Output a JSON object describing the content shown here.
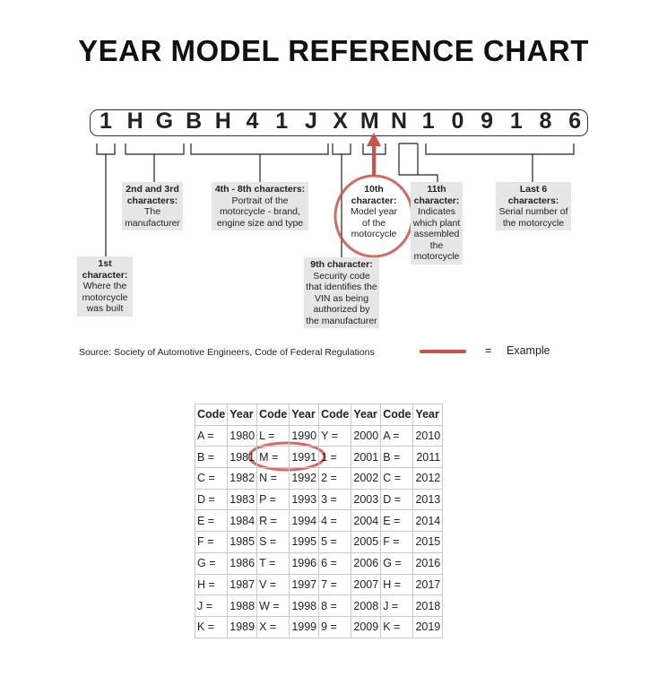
{
  "title": "YEAR MODEL REFERENCE CHART",
  "vin": [
    "1",
    "H",
    "G",
    "B",
    "H",
    "4",
    "1",
    "J",
    "X",
    "M",
    "N",
    "1",
    "0",
    "9",
    "1",
    "8",
    "6"
  ],
  "labels": {
    "first": {
      "head": "1st character:",
      "body": "Where the motorcycle was built"
    },
    "second_third": {
      "head": "2nd and 3rd characters:",
      "body": "The manufacturer"
    },
    "fourth_eighth": {
      "head": "4th - 8th characters:",
      "body": "Portrait of the motorcycle - brand, engine size and type"
    },
    "ninth": {
      "head": "9th character:",
      "body": "Security code that identifies the VIN as being authorized by the manufacturer"
    },
    "tenth": {
      "head": "10th character:",
      "body": "Model year of the motorcycle"
    },
    "eleventh": {
      "head": "11th character:",
      "body": "Indicates which plant assembled the motorcycle"
    },
    "last6": {
      "head": "Last 6 characters:",
      "body": "Serial number of the motorcycle"
    }
  },
  "source": "Source:  Society of Automotive Engineers, Code of Federal Regulations",
  "legend": {
    "equals": "=",
    "label": "Example",
    "color": "#c9524a"
  },
  "table": {
    "headers": [
      "Code",
      "Year",
      "Code",
      "Year",
      "Code",
      "Year",
      "Code",
      "Year"
    ],
    "rows": [
      [
        "A =",
        "1980",
        "L =",
        "1990",
        "Y =",
        "2000",
        "A =",
        "2010"
      ],
      [
        "B =",
        "1981",
        "M =",
        "1991",
        "1 =",
        "2001",
        "B =",
        "2011"
      ],
      [
        "C =",
        "1982",
        "N =",
        "1992",
        "2 =",
        "2002",
        "C =",
        "2012"
      ],
      [
        "D =",
        "1983",
        "P =",
        "1993",
        "3 =",
        "2003",
        "D =",
        "2013"
      ],
      [
        "E =",
        "1984",
        "R =",
        "1994",
        "4 =",
        "2004",
        "E =",
        "2014"
      ],
      [
        "F =",
        "1985",
        "S =",
        "1995",
        "5 =",
        "2005",
        "F =",
        "2015"
      ],
      [
        "G =",
        "1986",
        "T =",
        "1996",
        "6 =",
        "2006",
        "G =",
        "2016"
      ],
      [
        "H =",
        "1987",
        "V =",
        "1997",
        "7 =",
        "2007",
        "H =",
        "2017"
      ],
      [
        "J =",
        "1988",
        "W =",
        "1998",
        "8 =",
        "2008",
        "J =",
        "2018"
      ],
      [
        "K =",
        "1989",
        "X =",
        "1999",
        "9 =",
        "2009",
        "K =",
        "2019"
      ]
    ]
  }
}
